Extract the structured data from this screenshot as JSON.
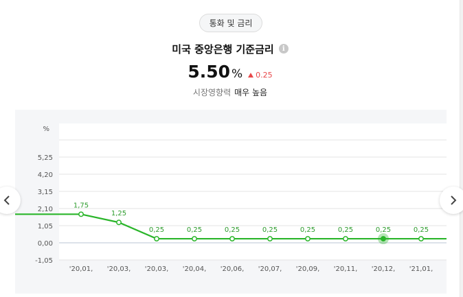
{
  "category": "통화 및 금리",
  "title": "미국 중앙은행 기준금리",
  "info_icon": "info-icon",
  "rate": {
    "value": "5.50",
    "unit": "%",
    "change": "0.25",
    "change_direction": "up"
  },
  "influence": {
    "label": "시장영향력",
    "level": "매우 높음"
  },
  "colors": {
    "line": "#2ab52a",
    "up": "#e8484a",
    "grid": "#e3e3e3",
    "zero_line": "#b9c6d3"
  },
  "nav": {
    "prev_icon": "chevron-left-icon",
    "next_icon": "chevron-right-icon"
  },
  "chart_data": {
    "type": "line",
    "ylabel": "%",
    "y_ticks": [
      "5.25",
      "4.20",
      "3.15",
      "2.10",
      "1.05",
      "0.00",
      "-1.05"
    ],
    "ylim": [
      -1.05,
      5.25
    ],
    "categories": [
      "'20.01.",
      "'20.03.",
      "'20.03.",
      "'20.04.",
      "'20.06.",
      "'20.07.",
      "'20.09.",
      "'20.11.",
      "'20.12.",
      "'21.01."
    ],
    "series": [
      {
        "values": [
          1.75,
          1.25,
          0.25,
          0.25,
          0.25,
          0.25,
          0.25,
          0.25,
          0.25,
          0.25
        ]
      }
    ],
    "data_labels": [
      "1.75",
      "1.25",
      "0.25",
      "0.25",
      "0.25",
      "0.25",
      "0.25",
      "0.25",
      "0.25",
      "0.25"
    ],
    "highlight_index": 8,
    "grid": true,
    "legend": "none"
  }
}
